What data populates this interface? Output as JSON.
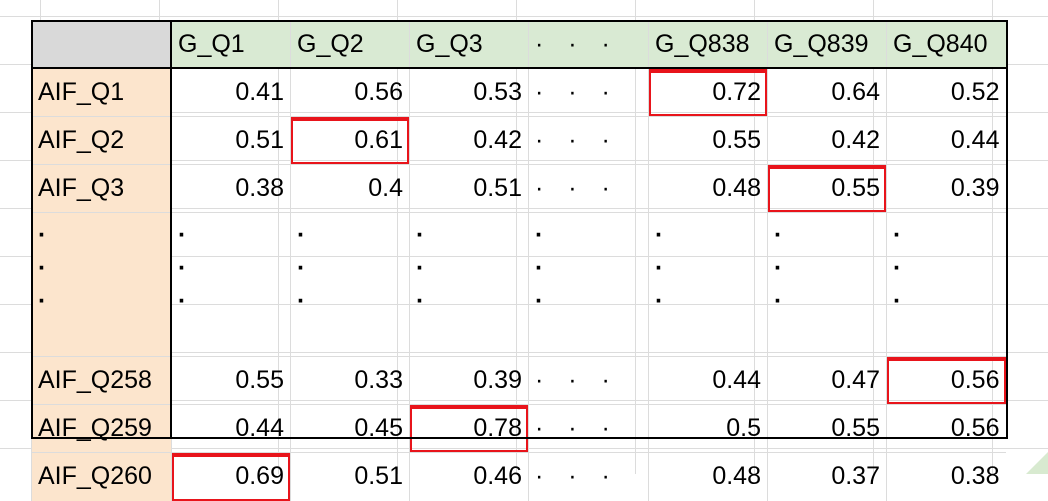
{
  "columns": [
    "G_Q1",
    "G_Q2",
    "G_Q3",
    "· · ·",
    "G_Q838",
    "G_Q839",
    "G_Q840"
  ],
  "vertical_dot": "·",
  "rows": [
    {
      "label": "AIF_Q1",
      "values": [
        "0.41",
        "0.56",
        "0.53",
        "· · ·",
        "0.72",
        "0.64",
        "0.52"
      ]
    },
    {
      "label": "AIF_Q2",
      "values": [
        "0.51",
        "0.61",
        "0.42",
        "· · ·",
        "0.55",
        "0.42",
        "0.44"
      ]
    },
    {
      "label": "AIF_Q3",
      "values": [
        "0.38",
        "0.4",
        "0.51",
        "· · ·",
        "0.48",
        "0.55",
        "0.39"
      ]
    },
    {
      "label": "AIF_Q258",
      "values": [
        "0.55",
        "0.33",
        "0.39",
        "· · ·",
        "0.44",
        "0.47",
        "0.56"
      ]
    },
    {
      "label": "AIF_Q259",
      "values": [
        "0.44",
        "0.45",
        "0.78",
        "· · ·",
        "0.5",
        "0.55",
        "0.56"
      ]
    },
    {
      "label": "AIF_Q260",
      "values": [
        "0.69",
        "0.51",
        "0.46",
        "· · ·",
        "0.48",
        "0.37",
        "0.38"
      ]
    }
  ],
  "highlight_color": "#e8141b",
  "highlighted_cells": [
    {
      "row": "AIF_Q1",
      "column": "G_Q838"
    },
    {
      "row": "AIF_Q2",
      "column": "G_Q2"
    },
    {
      "row": "AIF_Q3",
      "column": "G_Q839"
    },
    {
      "row": "AIF_Q258",
      "column": "G_Q840"
    },
    {
      "row": "AIF_Q259",
      "column": "G_Q3"
    },
    {
      "row": "AIF_Q260",
      "column": "G_Q1"
    }
  ],
  "colors": {
    "header_bg": "#d9ead3",
    "row_label_bg": "#fce5cd",
    "corner_bg": "#d9d9d9",
    "gridline": "#dcdcdc"
  }
}
